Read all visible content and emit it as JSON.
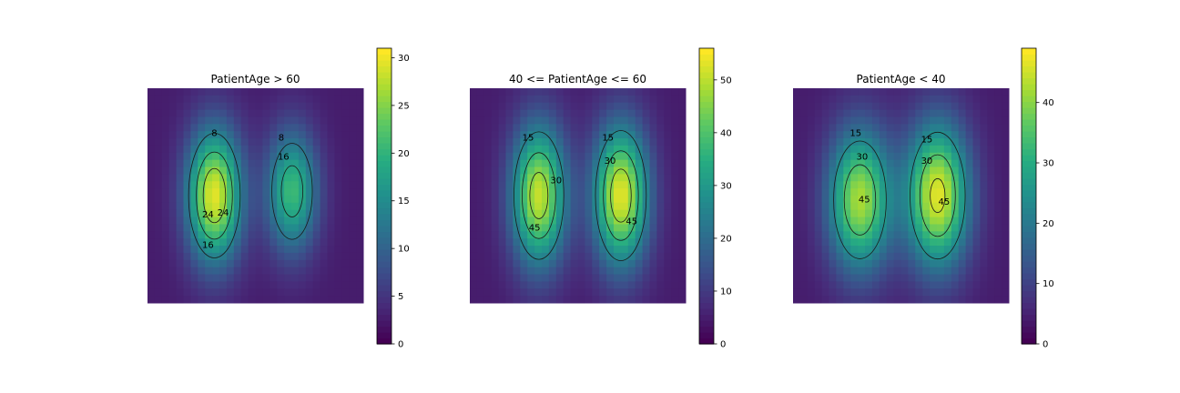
{
  "chart_data": [
    {
      "type": "heatmap",
      "title": "PatientAge > 60",
      "colormap": "viridis",
      "colorbar": {
        "min": 0,
        "max": 31,
        "ticks": [
          0,
          5,
          10,
          15,
          20,
          25,
          30
        ]
      },
      "contour_levels": [
        8,
        16,
        24
      ],
      "contour_labels": [
        "8",
        "8",
        "16",
        "16",
        "24",
        "24"
      ],
      "peak_value": 31
    },
    {
      "type": "heatmap",
      "title": "40 <= PatientAge <= 60",
      "colormap": "viridis",
      "colorbar": {
        "min": 0,
        "max": 56,
        "ticks": [
          0,
          10,
          20,
          30,
          40,
          50
        ]
      },
      "contour_levels": [
        15,
        30,
        45
      ],
      "contour_labels": [
        "15",
        "15",
        "30",
        "30",
        "45",
        "45"
      ],
      "peak_value": 56
    },
    {
      "type": "heatmap",
      "title": "PatientAge < 40",
      "colormap": "viridis",
      "colorbar": {
        "min": 0,
        "max": 49,
        "ticks": [
          0,
          10,
          20,
          30,
          40
        ]
      },
      "contour_levels": [
        15,
        30,
        45
      ],
      "contour_labels": [
        "15",
        "15",
        "30",
        "30",
        "45",
        "45"
      ],
      "peak_value": 49
    }
  ]
}
